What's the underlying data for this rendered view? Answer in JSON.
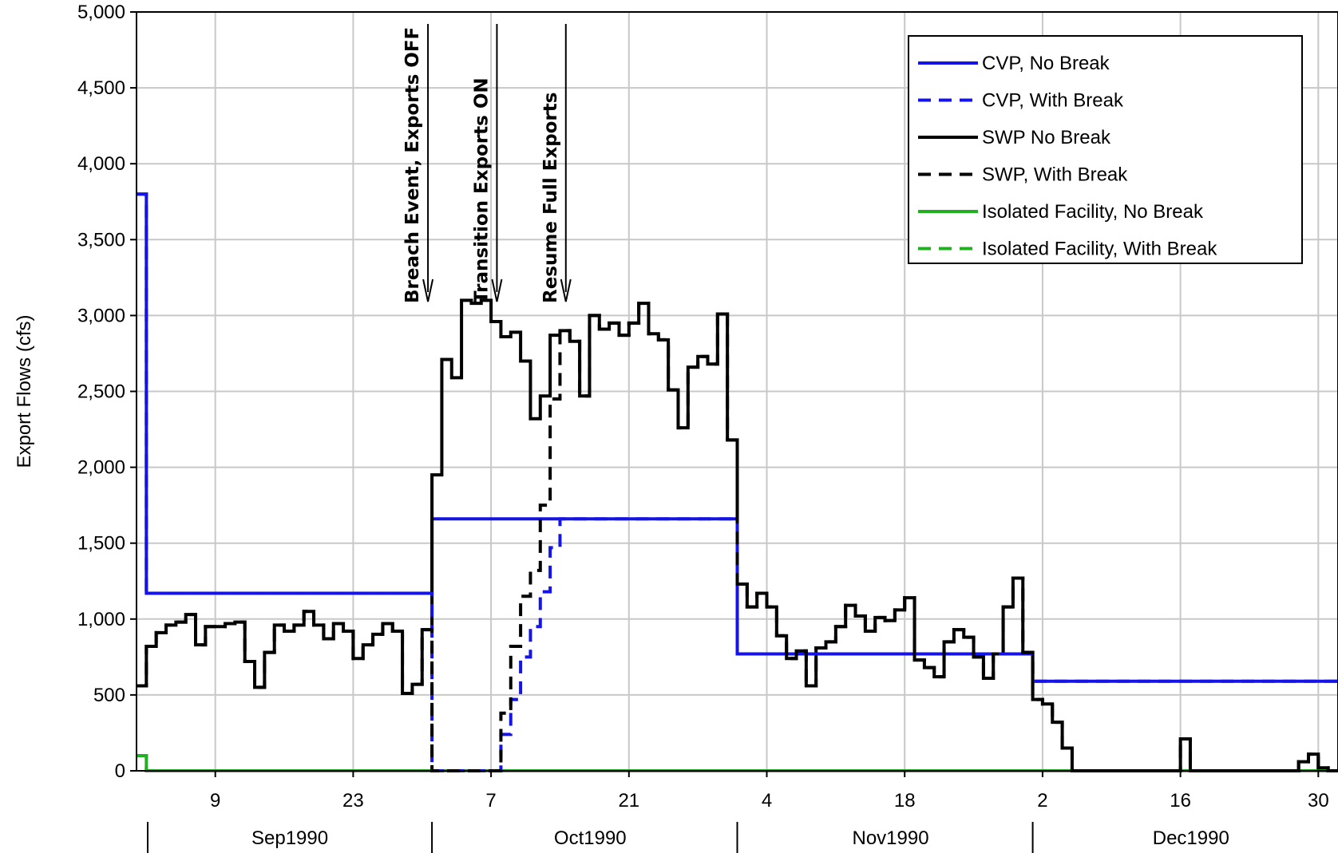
{
  "chart_data": {
    "type": "line",
    "title": "",
    "ylabel": "Export Flows (cfs)",
    "xlabel": "",
    "ylim": [
      0,
      5000
    ],
    "yticks": [
      0,
      500,
      1000,
      1500,
      2000,
      2500,
      3000,
      3500,
      4000,
      4500,
      5000
    ],
    "ytick_labels": [
      "0",
      "500",
      "1,000",
      "1,500",
      "2,000",
      "2,500",
      "3,000",
      "3,500",
      "4,000",
      "4,500",
      "5,000"
    ],
    "x_start": "1990-09-01",
    "x_end": "1991-01-01",
    "x_ticks": [
      {
        "date": "1990-09-09",
        "label": "9"
      },
      {
        "date": "1990-09-23",
        "label": "23"
      },
      {
        "date": "1990-10-07",
        "label": "7"
      },
      {
        "date": "1990-10-21",
        "label": "21"
      },
      {
        "date": "1990-11-04",
        "label": "4"
      },
      {
        "date": "1990-11-18",
        "label": "18"
      },
      {
        "date": "1990-12-02",
        "label": "2"
      },
      {
        "date": "1990-12-16",
        "label": "16"
      },
      {
        "date": "1990-12-30",
        "label": "30"
      }
    ],
    "month_labels": [
      {
        "label": "Sep1990",
        "start": "1990-09-01",
        "end": "1990-10-01"
      },
      {
        "label": "Oct1990",
        "start": "1990-10-01",
        "end": "1990-11-01"
      },
      {
        "label": "Nov1990",
        "start": "1990-11-01",
        "end": "1990-12-01"
      },
      {
        "label": "Dec1990",
        "start": "1990-12-01",
        "end": "1991-01-01"
      }
    ],
    "grid": true,
    "legend_position": "top-right",
    "annotations": [
      {
        "text": "Breach Event, Exports OFF",
        "date": "1990-10-01"
      },
      {
        "text": "Transition Exports ON",
        "date": "1990-10-08"
      },
      {
        "text": "Resume Full Exports",
        "date": "1990-10-15"
      }
    ],
    "series": [
      {
        "name": "CVP, No Break",
        "color": "#1414e6",
        "dash": "solid",
        "points": [
          [
            "1990-09-01",
            3800
          ],
          [
            "1990-09-02",
            1170
          ],
          [
            "1990-10-01",
            1660
          ],
          [
            "1990-11-01",
            770
          ],
          [
            "1990-12-01",
            590
          ],
          [
            "1991-01-01",
            590
          ]
        ]
      },
      {
        "name": "CVP, With Break",
        "color": "#1414e6",
        "dash": "dashed",
        "points": [
          [
            "1990-09-01",
            3800
          ],
          [
            "1990-09-02",
            1170
          ],
          [
            "1990-10-01",
            0
          ],
          [
            "1990-10-08",
            240
          ],
          [
            "1990-10-09",
            470
          ],
          [
            "1990-10-10",
            750
          ],
          [
            "1990-10-11",
            950
          ],
          [
            "1990-10-12",
            1180
          ],
          [
            "1990-10-13",
            1470
          ],
          [
            "1990-10-14",
            1660
          ],
          [
            "1990-11-01",
            770
          ],
          [
            "1990-12-01",
            590
          ],
          [
            "1991-01-01",
            590
          ]
        ]
      },
      {
        "name": "SWP No Break",
        "color": "#000000",
        "dash": "solid",
        "points": [
          [
            "1990-09-01",
            560
          ],
          [
            "1990-09-02",
            820
          ],
          [
            "1990-09-03",
            910
          ],
          [
            "1990-09-04",
            960
          ],
          [
            "1990-09-05",
            980
          ],
          [
            "1990-09-06",
            1030
          ],
          [
            "1990-09-07",
            830
          ],
          [
            "1990-09-08",
            950
          ],
          [
            "1990-09-10",
            970
          ],
          [
            "1990-09-11",
            980
          ],
          [
            "1990-09-12",
            720
          ],
          [
            "1990-09-13",
            550
          ],
          [
            "1990-09-14",
            780
          ],
          [
            "1990-09-15",
            960
          ],
          [
            "1990-09-16",
            920
          ],
          [
            "1990-09-17",
            960
          ],
          [
            "1990-09-18",
            1050
          ],
          [
            "1990-09-19",
            960
          ],
          [
            "1990-09-20",
            870
          ],
          [
            "1990-09-21",
            970
          ],
          [
            "1990-09-22",
            920
          ],
          [
            "1990-09-23",
            740
          ],
          [
            "1990-09-24",
            830
          ],
          [
            "1990-09-25",
            900
          ],
          [
            "1990-09-26",
            970
          ],
          [
            "1990-09-27",
            920
          ],
          [
            "1990-09-28",
            510
          ],
          [
            "1990-09-29",
            570
          ],
          [
            "1990-09-30",
            930
          ],
          [
            "1990-10-01",
            1950
          ],
          [
            "1990-10-02",
            2710
          ],
          [
            "1990-10-03",
            2590
          ],
          [
            "1990-10-04",
            3100
          ],
          [
            "1990-10-05",
            3080
          ],
          [
            "1990-10-06",
            3100
          ],
          [
            "1990-10-07",
            2960
          ],
          [
            "1990-10-08",
            2860
          ],
          [
            "1990-10-09",
            2890
          ],
          [
            "1990-10-10",
            2700
          ],
          [
            "1990-10-11",
            2320
          ],
          [
            "1990-10-12",
            2470
          ],
          [
            "1990-10-13",
            2870
          ],
          [
            "1990-10-14",
            2900
          ],
          [
            "1990-10-15",
            2830
          ],
          [
            "1990-10-16",
            2470
          ],
          [
            "1990-10-17",
            3000
          ],
          [
            "1990-10-18",
            2910
          ],
          [
            "1990-10-19",
            2950
          ],
          [
            "1990-10-20",
            2870
          ],
          [
            "1990-10-21",
            2950
          ],
          [
            "1990-10-22",
            3080
          ],
          [
            "1990-10-23",
            2880
          ],
          [
            "1990-10-24",
            2840
          ],
          [
            "1990-10-25",
            2510
          ],
          [
            "1990-10-26",
            2260
          ],
          [
            "1990-10-27",
            2660
          ],
          [
            "1990-10-28",
            2730
          ],
          [
            "1990-10-29",
            2680
          ],
          [
            "1990-10-30",
            3010
          ],
          [
            "1990-10-31",
            2180
          ],
          [
            "1990-11-01",
            1230
          ],
          [
            "1990-11-02",
            1080
          ],
          [
            "1990-11-03",
            1170
          ],
          [
            "1990-11-04",
            1080
          ],
          [
            "1990-11-05",
            890
          ],
          [
            "1990-11-06",
            740
          ],
          [
            "1990-11-07",
            790
          ],
          [
            "1990-11-08",
            560
          ],
          [
            "1990-11-09",
            810
          ],
          [
            "1990-11-10",
            850
          ],
          [
            "1990-11-11",
            950
          ],
          [
            "1990-11-12",
            1090
          ],
          [
            "1990-11-13",
            1020
          ],
          [
            "1990-11-14",
            920
          ],
          [
            "1990-11-15",
            1010
          ],
          [
            "1990-11-16",
            990
          ],
          [
            "1990-11-17",
            1060
          ],
          [
            "1990-11-18",
            1140
          ],
          [
            "1990-11-19",
            730
          ],
          [
            "1990-11-20",
            680
          ],
          [
            "1990-11-21",
            620
          ],
          [
            "1990-11-22",
            850
          ],
          [
            "1990-11-23",
            930
          ],
          [
            "1990-11-24",
            880
          ],
          [
            "1990-11-25",
            750
          ],
          [
            "1990-11-26",
            610
          ],
          [
            "1990-11-27",
            770
          ],
          [
            "1990-11-28",
            1080
          ],
          [
            "1990-11-29",
            1270
          ],
          [
            "1990-11-30",
            780
          ],
          [
            "1990-12-01",
            470
          ],
          [
            "1990-12-02",
            440
          ],
          [
            "1990-12-03",
            320
          ],
          [
            "1990-12-04",
            150
          ],
          [
            "1990-12-05",
            0
          ],
          [
            "1990-12-15",
            0
          ],
          [
            "1990-12-16",
            210
          ],
          [
            "1990-12-17",
            0
          ],
          [
            "1990-12-28",
            60
          ],
          [
            "1990-12-29",
            110
          ],
          [
            "1990-12-30",
            20
          ],
          [
            "1990-12-31",
            0
          ],
          [
            "1991-01-01",
            0
          ]
        ]
      },
      {
        "name": "SWP, With Break",
        "color": "#000000",
        "dash": "dashed",
        "points": [
          [
            "1990-09-01",
            560
          ],
          [
            "1990-09-02",
            820
          ],
          [
            "1990-09-03",
            910
          ],
          [
            "1990-09-04",
            960
          ],
          [
            "1990-09-05",
            980
          ],
          [
            "1990-09-06",
            1030
          ],
          [
            "1990-09-07",
            830
          ],
          [
            "1990-09-08",
            950
          ],
          [
            "1990-09-10",
            970
          ],
          [
            "1990-09-11",
            980
          ],
          [
            "1990-09-12",
            720
          ],
          [
            "1990-09-13",
            550
          ],
          [
            "1990-09-14",
            780
          ],
          [
            "1990-09-15",
            960
          ],
          [
            "1990-09-16",
            920
          ],
          [
            "1990-09-17",
            960
          ],
          [
            "1990-09-18",
            1050
          ],
          [
            "1990-09-19",
            960
          ],
          [
            "1990-09-20",
            870
          ],
          [
            "1990-09-21",
            970
          ],
          [
            "1990-09-22",
            920
          ],
          [
            "1990-09-23",
            740
          ],
          [
            "1990-09-24",
            830
          ],
          [
            "1990-09-25",
            900
          ],
          [
            "1990-09-26",
            970
          ],
          [
            "1990-09-27",
            920
          ],
          [
            "1990-09-28",
            510
          ],
          [
            "1990-09-29",
            570
          ],
          [
            "1990-09-30",
            930
          ],
          [
            "1990-10-01",
            0
          ],
          [
            "1990-10-08",
            380
          ],
          [
            "1990-10-09",
            820
          ],
          [
            "1990-10-10",
            1150
          ],
          [
            "1990-10-11",
            1320
          ],
          [
            "1990-10-12",
            1750
          ],
          [
            "1990-10-13",
            2450
          ],
          [
            "1990-10-14",
            2900
          ],
          [
            "1990-10-15",
            2830
          ],
          [
            "1990-10-16",
            2470
          ],
          [
            "1990-10-17",
            3000
          ],
          [
            "1990-10-18",
            2910
          ],
          [
            "1990-10-19",
            2950
          ],
          [
            "1990-10-20",
            2870
          ],
          [
            "1990-10-21",
            2950
          ],
          [
            "1990-10-22",
            3080
          ],
          [
            "1990-10-23",
            2880
          ],
          [
            "1990-10-24",
            2840
          ],
          [
            "1990-10-25",
            2510
          ],
          [
            "1990-10-26",
            2260
          ],
          [
            "1990-10-27",
            2660
          ],
          [
            "1990-10-28",
            2730
          ],
          [
            "1990-10-29",
            2680
          ],
          [
            "1990-10-30",
            3010
          ],
          [
            "1990-10-31",
            2180
          ],
          [
            "1990-11-01",
            1230
          ],
          [
            "1990-11-02",
            1080
          ],
          [
            "1990-11-03",
            1170
          ],
          [
            "1990-11-04",
            1080
          ],
          [
            "1990-11-05",
            890
          ],
          [
            "1990-11-06",
            740
          ],
          [
            "1990-11-07",
            790
          ],
          [
            "1990-11-08",
            560
          ],
          [
            "1990-11-09",
            810
          ],
          [
            "1990-11-10",
            850
          ],
          [
            "1990-11-11",
            950
          ],
          [
            "1990-11-12",
            1090
          ],
          [
            "1990-11-13",
            1020
          ],
          [
            "1990-11-14",
            920
          ],
          [
            "1990-11-15",
            1010
          ],
          [
            "1990-11-16",
            990
          ],
          [
            "1990-11-17",
            1060
          ],
          [
            "1990-11-18",
            1140
          ],
          [
            "1990-11-19",
            730
          ],
          [
            "1990-11-20",
            680
          ],
          [
            "1990-11-21",
            620
          ],
          [
            "1990-11-22",
            850
          ],
          [
            "1990-11-23",
            930
          ],
          [
            "1990-11-24",
            880
          ],
          [
            "1990-11-25",
            750
          ],
          [
            "1990-11-26",
            610
          ],
          [
            "1990-11-27",
            770
          ],
          [
            "1990-11-28",
            1080
          ],
          [
            "1990-11-29",
            1270
          ],
          [
            "1990-11-30",
            780
          ],
          [
            "1990-12-01",
            470
          ],
          [
            "1990-12-02",
            440
          ],
          [
            "1990-12-03",
            320
          ],
          [
            "1990-12-04",
            150
          ],
          [
            "1990-12-05",
            0
          ],
          [
            "1990-12-15",
            0
          ],
          [
            "1990-12-16",
            210
          ],
          [
            "1990-12-17",
            0
          ],
          [
            "1990-12-28",
            60
          ],
          [
            "1990-12-29",
            110
          ],
          [
            "1990-12-30",
            20
          ],
          [
            "1990-12-31",
            0
          ],
          [
            "1991-01-01",
            0
          ]
        ]
      },
      {
        "name": "Isolated Facility, No Break",
        "color": "#22b022",
        "dash": "solid",
        "points": [
          [
            "1990-09-01",
            100
          ],
          [
            "1990-09-02",
            0
          ],
          [
            "1991-01-01",
            0
          ]
        ]
      },
      {
        "name": "Isolated Facility, With Break",
        "color": "#22b022",
        "dash": "dashed",
        "points": [
          [
            "1990-09-01",
            100
          ],
          [
            "1990-09-02",
            0
          ],
          [
            "1991-01-01",
            0
          ]
        ]
      }
    ]
  }
}
